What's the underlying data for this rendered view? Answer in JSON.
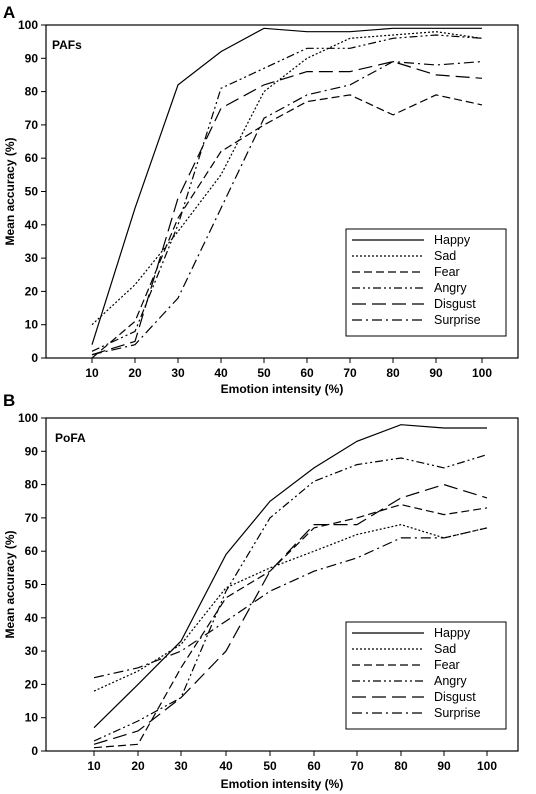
{
  "chart_data": [
    {
      "type": "line",
      "panel": "A",
      "inset_label": "PAFs",
      "xlabel": "Emotion intensity (%)",
      "ylabel": "Mean accuracy (%)",
      "x": [
        10,
        20,
        30,
        40,
        50,
        60,
        70,
        80,
        90,
        100
      ],
      "ylim": [
        0,
        100
      ],
      "yticks": [
        0,
        10,
        20,
        30,
        40,
        50,
        60,
        70,
        80,
        90,
        100
      ],
      "grid": false,
      "legend_position": "bottom-right",
      "series": [
        {
          "name": "Happy",
          "dash": "",
          "values": [
            4,
            45,
            82,
            92,
            99,
            98,
            98,
            99,
            99,
            99
          ]
        },
        {
          "name": "Sad",
          "dash": "2 2",
          "values": [
            10,
            22,
            38,
            55,
            80,
            90,
            96,
            97,
            98,
            96
          ]
        },
        {
          "name": "Fear",
          "dash": "8 4",
          "values": [
            0,
            11,
            42,
            62,
            70,
            77,
            79,
            73,
            79,
            76
          ]
        },
        {
          "name": "Angry",
          "dash": "8 3 2 3 2 3",
          "values": [
            2,
            8,
            40,
            81,
            87,
            93,
            93,
            96,
            97,
            96
          ]
        },
        {
          "name": "Disgust",
          "dash": "14 6",
          "values": [
            1,
            5,
            48,
            75,
            82,
            86,
            86,
            89,
            85,
            84
          ]
        },
        {
          "name": "Surprise",
          "dash": "10 4 2 4",
          "values": [
            1,
            4,
            18,
            45,
            72,
            79,
            82,
            89,
            88,
            89
          ]
        }
      ]
    },
    {
      "type": "line",
      "panel": "B",
      "inset_label": "PoFA",
      "xlabel": "Emotion intensity (%)",
      "ylabel": "Mean accuracy (%)",
      "x": [
        10,
        20,
        30,
        40,
        50,
        60,
        70,
        80,
        90,
        100
      ],
      "ylim": [
        0,
        100
      ],
      "yticks": [
        0,
        10,
        20,
        30,
        40,
        50,
        60,
        70,
        80,
        90,
        100
      ],
      "grid": false,
      "legend_position": "bottom-right",
      "series": [
        {
          "name": "Happy",
          "dash": "",
          "values": [
            7,
            20,
            33,
            59,
            75,
            85,
            93,
            98,
            97,
            97
          ]
        },
        {
          "name": "Sad",
          "dash": "2 2",
          "values": [
            18,
            24,
            32,
            49,
            55,
            60,
            65,
            68,
            64,
            67
          ]
        },
        {
          "name": "Fear",
          "dash": "8 4",
          "values": [
            1,
            2,
            25,
            46,
            54,
            67,
            70,
            74,
            71,
            73
          ]
        },
        {
          "name": "Angry",
          "dash": "8 3 2 3 2 3",
          "values": [
            3,
            9,
            16,
            48,
            70,
            81,
            86,
            88,
            85,
            89
          ]
        },
        {
          "name": "Disgust",
          "dash": "14 6",
          "values": [
            2,
            6,
            16,
            30,
            54,
            68,
            68,
            76,
            80,
            76
          ]
        },
        {
          "name": "Surprise",
          "dash": "10 4 2 4",
          "values": [
            22,
            25,
            30,
            39,
            48,
            54,
            58,
            64,
            64,
            67
          ]
        }
      ]
    }
  ]
}
